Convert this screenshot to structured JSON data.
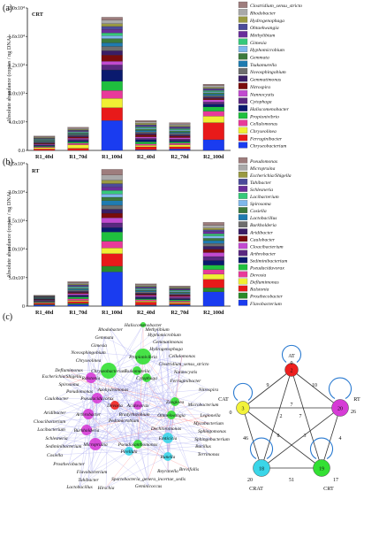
{
  "panels": {
    "a": {
      "label": "(a)",
      "tag": "CRT"
    },
    "b": {
      "label": "(b)",
      "tag": "RT"
    },
    "c": {
      "label": "(c)"
    }
  },
  "chart_data": [
    {
      "type": "bar",
      "stacked": true,
      "categories": [
        "R1_40d",
        "R1_70d",
        "R1_100d",
        "R2_40d",
        "R2_70d",
        "R2_100d"
      ],
      "ylabel": "Absolute abundance (copies / ng DNA)",
      "ylim": [
        0,
        20000
      ],
      "yticks": [
        "0.0",
        "4.0x10³",
        "8.0x10³",
        "1.2x10⁴",
        "1.6x10⁴",
        "2.0x10⁴"
      ],
      "totals": [
        1900,
        3000,
        19500,
        4000,
        3600,
        9000
      ],
      "legend_top_to_bottom": [
        "Clostridium_sensu_stricto",
        "Rhodobacter",
        "Hydrogenophaga",
        "Ohtaekwangia",
        "Methylibium",
        "Gimesia",
        "Hyphomicrobium",
        "Gemmata",
        "Tsukamurella",
        "Novosphingobium",
        "Gemmatimonas",
        "Nitrospira",
        "Nannocystis",
        "Cytophaga",
        "Haliscomenobacter",
        "Propionivibrio",
        "Cellulomonas",
        "Chryseolinea",
        "Ferruginibacter",
        "Chryseobacterium"
      ],
      "legend_colors": [
        "#9e7d7d",
        "#a9a9a9",
        "#9a9a42",
        "#4b4b9a",
        "#6a2e9a",
        "#36c97a",
        "#7fb8ec",
        "#3c7a3c",
        "#1f7bb0",
        "#6e6e6e",
        "#3a1e66",
        "#7a0c0c",
        "#c24ad0",
        "#5a2880",
        "#0a1a6e",
        "#1fbf3e",
        "#e83a9a",
        "#f0f034",
        "#e81a1a",
        "#1a3cf0"
      ],
      "series_bottom_to_top": [
        {
          "name": "Chryseobacterium",
          "values": [
            0,
            0,
            4200,
            100,
            200,
            1500
          ]
        },
        {
          "name": "Ferruginibacter",
          "values": [
            200,
            300,
            1800,
            400,
            300,
            2400
          ]
        },
        {
          "name": "Chryseolinea",
          "values": [
            200,
            500,
            1300,
            200,
            300,
            900
          ]
        },
        {
          "name": "Cellulomonas",
          "values": [
            100,
            200,
            1100,
            200,
            200,
            700
          ]
        },
        {
          "name": "Propionivibrio",
          "values": [
            100,
            200,
            1300,
            300,
            200,
            600
          ]
        },
        {
          "name": "Haliscomenobacter",
          "values": [
            100,
            200,
            1600,
            300,
            200,
            400
          ]
        },
        {
          "name": "Cytophaga",
          "values": [
            100,
            150,
            700,
            200,
            200,
            300
          ]
        },
        {
          "name": "Nannocystis",
          "values": [
            100,
            150,
            500,
            200,
            200,
            300
          ]
        },
        {
          "name": "Nitrospira",
          "values": [
            100,
            200,
            900,
            300,
            200,
            200
          ]
        },
        {
          "name": "Gemmatimonas",
          "values": [
            100,
            150,
            600,
            200,
            200,
            200
          ]
        },
        {
          "name": "Novosphingobium",
          "values": [
            100,
            150,
            600,
            200,
            200,
            200
          ]
        },
        {
          "name": "Tsukamurella",
          "values": [
            100,
            100,
            500,
            200,
            150,
            200
          ]
        },
        {
          "name": "Gemmata",
          "values": [
            100,
            150,
            600,
            200,
            200,
            200
          ]
        },
        {
          "name": "Hyphomicrobium",
          "values": [
            80,
            100,
            400,
            150,
            150,
            150
          ]
        },
        {
          "name": "Gimesia",
          "values": [
            80,
            100,
            400,
            150,
            150,
            150
          ]
        },
        {
          "name": "Methylibium",
          "values": [
            80,
            100,
            500,
            150,
            150,
            150
          ]
        },
        {
          "name": "Ohtaekwangia",
          "values": [
            80,
            100,
            400,
            150,
            150,
            150
          ]
        },
        {
          "name": "Hydrogenophaga",
          "values": [
            80,
            100,
            400,
            200,
            150,
            150
          ]
        },
        {
          "name": "Rhodobacter",
          "values": [
            100,
            150,
            500,
            200,
            200,
            250
          ]
        },
        {
          "name": "Clostridium_sensu_stricto",
          "values": [
            120,
            150,
            400,
            200,
            200,
            200
          ]
        }
      ]
    },
    {
      "type": "bar",
      "stacked": true,
      "categories": [
        "R1_40d",
        "R1_70d",
        "R1_100d",
        "R2_40d",
        "R2_70d",
        "R2_100d"
      ],
      "ylabel": "Absolute abundance (copies / ng DNA)",
      "ylim": [
        0,
        25000
      ],
      "yticks": [
        "0",
        "5.0x10³",
        "1.0x10⁴",
        "1.5x10⁴",
        "2.0x10⁴",
        "2.5x10⁴"
      ],
      "totals": [
        1700,
        4200,
        24000,
        3500,
        3200,
        13500
      ],
      "legend_top_to_bottom": [
        "Pseudomonas",
        "Micropruina",
        "Escherichia/Shigella",
        "Tahibacter",
        "Schlesneria",
        "Lacibacterium",
        "Spirosoma",
        "Cosiella",
        "Lactobacillus",
        "Burkholderia",
        "Aridibacter",
        "Caulobacter",
        "Cloacibacterium",
        "Arthrobacter",
        "Sediminibacterium",
        "Pseudaciduvorax",
        "Devosia",
        "Deflumimonas",
        "Ralstonia",
        "Prosthecobacter",
        "Flavobacterium"
      ],
      "legend_colors": [
        "#9e7d7d",
        "#a9a9a9",
        "#9a9a42",
        "#4b4b9a",
        "#6a2e9a",
        "#36c97a",
        "#7fb8ec",
        "#3c7a3c",
        "#1f7bb0",
        "#6e6e6e",
        "#3a1e66",
        "#7a0c0c",
        "#c24ad0",
        "#5a2880",
        "#0a1a6e",
        "#1fbf3e",
        "#e83a9a",
        "#f0f034",
        "#e81a1a",
        "#2a8a2a",
        "#1a3cf0"
      ],
      "series_bottom_to_top": [
        {
          "name": "Flavobacterium",
          "values": [
            200,
            300,
            6000,
            100,
            200,
            2500
          ]
        },
        {
          "name": "Prosthecobacter",
          "values": [
            100,
            200,
            1000,
            100,
            100,
            700
          ]
        },
        {
          "name": "Ralstonia",
          "values": [
            200,
            300,
            2200,
            500,
            200,
            1500
          ]
        },
        {
          "name": "Deflumimonas",
          "values": [
            100,
            200,
            1000,
            200,
            200,
            900
          ]
        },
        {
          "name": "Devosia",
          "values": [
            100,
            300,
            1200,
            200,
            200,
            800
          ]
        },
        {
          "name": "Pseudaciduvorax",
          "values": [
            100,
            300,
            1600,
            200,
            200,
            800
          ]
        },
        {
          "name": "Sediminibacterium",
          "values": [
            100,
            200,
            800,
            200,
            200,
            800
          ]
        },
        {
          "name": "Arthrobacter",
          "values": [
            100,
            200,
            800,
            200,
            200,
            700
          ]
        },
        {
          "name": "Cloacibacterium",
          "values": [
            80,
            200,
            900,
            200,
            200,
            700
          ]
        },
        {
          "name": "Caulobacter",
          "values": [
            80,
            200,
            800,
            200,
            200,
            600
          ]
        },
        {
          "name": "Aridibacter",
          "values": [
            80,
            200,
            700,
            200,
            150,
            500
          ]
        },
        {
          "name": "Burkholderia",
          "values": [
            80,
            200,
            700,
            200,
            150,
            500
          ]
        },
        {
          "name": "Lactobacillus",
          "values": [
            80,
            200,
            800,
            200,
            150,
            500
          ]
        },
        {
          "name": "Cosiella",
          "values": [
            60,
            150,
            600,
            150,
            150,
            400
          ]
        },
        {
          "name": "Spirosoma",
          "values": [
            60,
            150,
            600,
            150,
            150,
            400
          ]
        },
        {
          "name": "Lacibacterium",
          "values": [
            60,
            150,
            600,
            150,
            150,
            400
          ]
        },
        {
          "name": "Schlesneria",
          "values": [
            60,
            150,
            600,
            150,
            150,
            400
          ]
        },
        {
          "name": "Tahibacter",
          "values": [
            60,
            150,
            600,
            150,
            150,
            300
          ]
        },
        {
          "name": "Escherichia/Shigella",
          "values": [
            60,
            150,
            600,
            150,
            150,
            300
          ]
        },
        {
          "name": "Micropruina",
          "values": [
            80,
            200,
            900,
            150,
            150,
            500
          ]
        },
        {
          "name": "Pseudomonas",
          "values": [
            70,
            200,
            1000,
            150,
            150,
            500
          ]
        }
      ]
    }
  ],
  "network": {
    "nodes": [
      "Haliscomenobacter",
      "Methylibium",
      "Hyphomicrobium",
      "Rhodobacter",
      "Gemmata",
      "Gemmatimonas",
      "Gimesia",
      "Hydrogenophaga",
      "Novosphingobium",
      "Cellulomonas",
      "Chryseolinea",
      "Propionivibrio",
      "Clostridium_sensu_stricto",
      "Deflumimonas",
      "Chryseobacterium",
      "Tsukamurella",
      "Nannocystis",
      "Escherichia/Shigella",
      "Ralstonia",
      "Cytophaga",
      "Ferruginibacter",
      "Spirosoma",
      "Pseudomonas",
      "Azohydromonas",
      "Nitrospira",
      "Caulobacter",
      "Pseudaciduvorax",
      "Devosia",
      "Acidovorax",
      "Zoogloea",
      "Microbacterium",
      "Aridibacter",
      "Arthrobacter",
      "Bradyrhizobium",
      "Legionella",
      "Cloacibacterium",
      "Pedomicrobium",
      "Ohtaekwangia",
      "Mycobacterium",
      "Lacibacterium",
      "Burkholderia",
      "Dechloromonas",
      "Sphingomonas",
      "Emticicia",
      "Sphingobacterium",
      "Schlesneria",
      "Micropruina",
      "Pseudoxanthomonas",
      "Bacillus",
      "Sediminibacterium",
      "Pirellula",
      "Terrimonas",
      "Cosiella",
      "Runella",
      "Prosthecobacter",
      "Brevifollis",
      "Flavobacterium",
      "Reyranella",
      "Tahibacter",
      "Spartobacteria_genera_incertae_sedis",
      "Lactobacillus",
      "Hirschia",
      "Geminicoccus"
    ],
    "groups": {
      "AT": {
        "label": "AT",
        "count": 2,
        "color": "#ee2020"
      },
      "RT": {
        "label": "RT",
        "count": 20,
        "color": "#d63bd6"
      },
      "CRT": {
        "label": "CRT",
        "count": 19,
        "color": "#33e033"
      },
      "CRAT": {
        "label": "CRAT",
        "count": 18,
        "color": "#3ad6e8"
      },
      "CAT": {
        "label": "CAT",
        "count": 3,
        "color": "#f2f23a"
      }
    },
    "self_loops": {
      "AT": "0",
      "RT": "26",
      "CRT": "17",
      "CRAT": "20",
      "CAT": "0"
    },
    "edge_labels": [
      "10",
      "4",
      "51",
      "46",
      "9",
      "7",
      "2",
      "3",
      "7",
      "8"
    ]
  }
}
